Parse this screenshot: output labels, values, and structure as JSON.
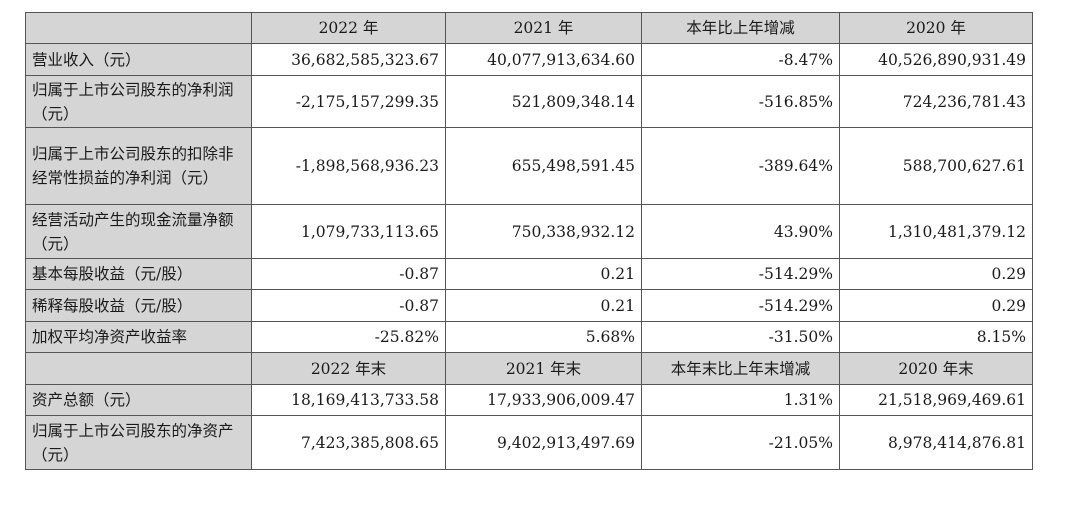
{
  "header1": [
    "2022 年",
    "2021 年",
    "本年比上年增减",
    "2020 年"
  ],
  "rows1": [
    {
      "label": "营业收入（元）",
      "values": [
        "36,682,585,323.67",
        "40,077,913,634.60",
        "-8.47%",
        "40,526,890,931.49"
      ]
    },
    {
      "label": "归属于上市公司股东的净利润（元）",
      "values": [
        "-2,175,157,299.35",
        "521,809,348.14",
        "-516.85%",
        "724,236,781.43"
      ]
    },
    {
      "label": "归属于上市公司股东的扣除非经常性损益的净利润（元）",
      "values": [
        "-1,898,568,936.23",
        "655,498,591.45",
        "-389.64%",
        "588,700,627.61"
      ]
    },
    {
      "label": "经营活动产生的现金流量净额（元）",
      "values": [
        "1,079,733,113.65",
        "750,338,932.12",
        "43.90%",
        "1,310,481,379.12"
      ]
    },
    {
      "label": "基本每股收益（元/股）",
      "values": [
        "-0.87",
        "0.21",
        "-514.29%",
        "0.29"
      ]
    },
    {
      "label": "稀释每股收益（元/股）",
      "values": [
        "-0.87",
        "0.21",
        "-514.29%",
        "0.29"
      ]
    },
    {
      "label": "加权平均净资产收益率",
      "values": [
        "-25.82%",
        "5.68%",
        "-31.50%",
        "8.15%"
      ]
    }
  ],
  "header2": [
    "2022 年末",
    "2021 年末",
    "本年末比上年末增减",
    "2020 年末"
  ],
  "rows2": [
    {
      "label": "资产总额（元）",
      "values": [
        "18,169,413,733.58",
        "17,933,906,009.47",
        "1.31%",
        "21,518,969,469.61"
      ]
    },
    {
      "label": "归属于上市公司股东的净资产（元）",
      "values": [
        "7,423,385,808.65",
        "9,402,913,497.69",
        "-21.05%",
        "8,978,414,876.81"
      ]
    }
  ]
}
